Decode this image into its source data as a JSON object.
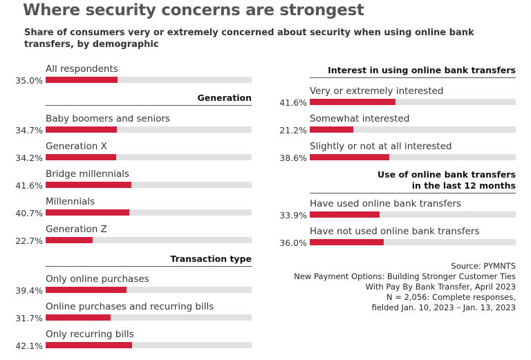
{
  "chart_data": {
    "type": "bar",
    "orientation": "horizontal",
    "title": "Where security concerns are strongest",
    "subtitle": "Share of consumers very or extremely concerned about security when using online bank transfers, by demographic",
    "xlim": [
      0,
      100
    ],
    "colors": {
      "bar": "#d21f3c",
      "track": "#e1e1e1"
    },
    "groups": [
      {
        "name": "",
        "items": [
          {
            "label": "All respondents",
            "value": 35.0,
            "display": "35.0%"
          }
        ]
      },
      {
        "name": "Generation",
        "items": [
          {
            "label": "Baby boomers and seniors",
            "value": 34.7,
            "display": "34.7%"
          },
          {
            "label": "Generation X",
            "value": 34.2,
            "display": "34.2%"
          },
          {
            "label": "Bridge millennials",
            "value": 41.6,
            "display": "41.6%"
          },
          {
            "label": "Millennials",
            "value": 40.7,
            "display": "40.7%"
          },
          {
            "label": "Generation Z",
            "value": 22.7,
            "display": "22.7%"
          }
        ]
      },
      {
        "name": "Transaction type",
        "items": [
          {
            "label": "Only online purchases",
            "value": 39.4,
            "display": "39.4%"
          },
          {
            "label": "Online purchases and recurring bills",
            "value": 31.7,
            "display": "31.7%"
          },
          {
            "label": "Only recurring bills",
            "value": 42.1,
            "display": "42.1%"
          }
        ]
      },
      {
        "name": "Interest in using online bank transfers",
        "items": [
          {
            "label": "Very or extremely interested",
            "value": 41.6,
            "display": "41.6%"
          },
          {
            "label": "Somewhat interested",
            "value": 21.2,
            "display": "21.2%"
          },
          {
            "label": "Slightly or not at all interested",
            "value": 38.6,
            "display": "38.6%"
          }
        ]
      },
      {
        "name": "Use of online bank transfers",
        "name_line2": "in the last 12 months",
        "items": [
          {
            "label": "Have used online bank transfers",
            "value": 33.9,
            "display": "33.9%"
          },
          {
            "label": "Have not used online bank transfers",
            "value": 36.0,
            "display": "36.0%"
          }
        ]
      }
    ],
    "source": [
      "Source: PYMNTS",
      "New Payment Options: Building Stronger Customer Ties",
      "With Pay By Bank Transfer, April 2023",
      "N = 2,056: Complete responses,",
      "fielded Jan. 10, 2023 – Jan. 13, 2023"
    ]
  }
}
